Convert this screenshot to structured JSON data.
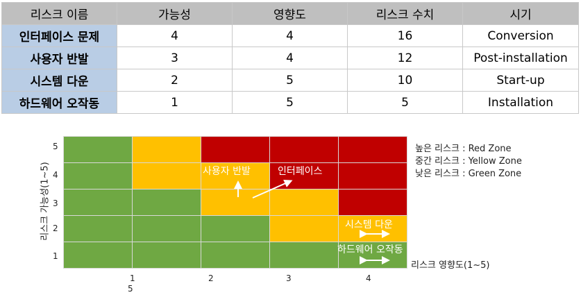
{
  "table": {
    "headers": [
      "리스크 이름",
      "가능성",
      "영향도",
      "리스크 수치",
      "시기"
    ],
    "rows": [
      {
        "name": "인터페이스 문제",
        "likelihood": "4",
        "impact": "4",
        "score": "16",
        "phase": "Conversion"
      },
      {
        "name": "사용자 반발",
        "likelihood": "3",
        "impact": "4",
        "score": "12",
        "phase": "Post-installation"
      },
      {
        "name": "시스템 다운",
        "likelihood": "2",
        "impact": "5",
        "score": "10",
        "phase": "Start-up"
      },
      {
        "name": "하드웨어 오작동",
        "likelihood": "1",
        "impact": "5",
        "score": "5",
        "phase": "Installation"
      }
    ]
  },
  "matrix": {
    "colors": {
      "green": "#6fa843",
      "yellow": "#ffc000",
      "red": "#c00000"
    },
    "rows_top_to_bottom": [
      [
        "g",
        "y",
        "r",
        "r",
        "r"
      ],
      [
        "g",
        "y",
        "y",
        "r",
        "r"
      ],
      [
        "g",
        "g",
        "y",
        "y",
        "r"
      ],
      [
        "g",
        "g",
        "g",
        "y",
        "y"
      ],
      [
        "g",
        "g",
        "g",
        "g",
        "g"
      ]
    ],
    "labels": {
      "user_resistance": "사용자 반발",
      "interface": "인터페이스",
      "system_down": "시스템 다운",
      "hardware": "하드웨어 오작동"
    },
    "y_ticks": [
      "5",
      "4",
      "3",
      "2",
      "1"
    ],
    "x_ticks": [
      "1",
      "2",
      "3",
      "4"
    ],
    "x_tick_extra": "5",
    "y_axis_title": "리스크 가능성(1~5)",
    "x_axis_title": "리스크 영향도(1~5)"
  },
  "legend": {
    "red": "높은 리스크 : Red Zone",
    "yellow": "중간 리스크 : Yellow Zone",
    "green": "낮은 리스크 : Green Zone"
  }
}
